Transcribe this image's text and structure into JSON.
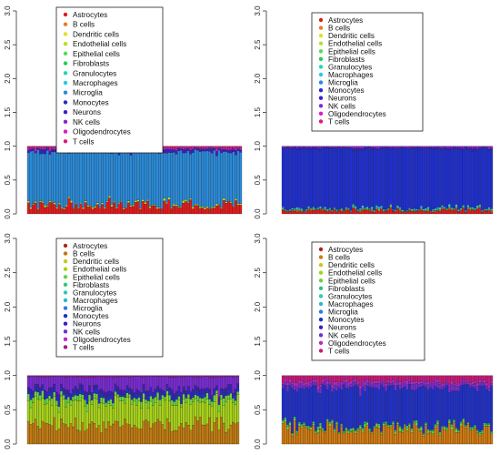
{
  "chart_data": [
    {
      "type": "bar",
      "stacked": true,
      "ylim": [
        0,
        3.0
      ],
      "yticks": [
        "0.0",
        "0.5",
        "1.0",
        "1.5",
        "2.0",
        "2.5",
        "3.0"
      ],
      "n_bars": 90,
      "legend": [
        "Astrocytes",
        "B cells",
        "Dendritic cells",
        "Endothelial cells",
        "Epithelial cells",
        "Fibroblasts",
        "Granulocytes",
        "Macrophages",
        "Microglia",
        "Monocytes",
        "Neurons",
        "NK cells",
        "Oligodendrocytes",
        "T cells"
      ],
      "legend_position": "top-center",
      "dominant_composition": {
        "Astrocytes": 0.12,
        "Endothelial cells": 0.02,
        "Microglia": 0.78,
        "Neurons": 0.04,
        "Oligodendrocytes": 0.02,
        "T cells": 0.02
      }
    },
    {
      "type": "bar",
      "stacked": true,
      "ylim": [
        0,
        3.0
      ],
      "yticks": [
        "0.0",
        "0.5",
        "1.0",
        "1.5",
        "2.0",
        "2.5",
        "3.0"
      ],
      "n_bars": 90,
      "legend": [
        "Astrocytes",
        "B cells",
        "Dendritic cells",
        "Endothelial cells",
        "Epithelial cells",
        "Fibroblasts",
        "Granulocytes",
        "Macrophages",
        "Microglia",
        "Monocytes",
        "Neurons",
        "NK cells",
        "Oligodendrocytes",
        "T cells"
      ],
      "legend_position": "top-center",
      "dominant_composition": {
        "Astrocytes": 0.04,
        "B cells": 0.01,
        "Epithelial cells": 0.01,
        "Macrophages": 0.02,
        "Monocytes": 0.88,
        "Neurons": 0.02,
        "NK cells": 0.02
      }
    },
    {
      "type": "bar",
      "stacked": true,
      "ylim": [
        0,
        3.0
      ],
      "yticks": [
        "0.0",
        "0.5",
        "1.0",
        "1.5",
        "2.0",
        "2.5",
        "3.0"
      ],
      "n_bars": 90,
      "legend": [
        "Astrocytes",
        "B cells",
        "Dendritic cells",
        "Endothelial cells",
        "Epithelial cells",
        "Fibroblasts",
        "Granulocytes",
        "Macrophages",
        "Microglia",
        "Monocytes",
        "Neurons",
        "NK cells",
        "Oligodendrocytes",
        "T cells"
      ],
      "legend_position": "top-center",
      "dominant_composition": {
        "B cells": 0.28,
        "Endothelial cells": 0.32,
        "Epithelial cells": 0.08,
        "Monocytes": 0.06,
        "Neurons": 0.06,
        "NK cells": 0.18,
        "T cells": 0.02
      }
    },
    {
      "type": "bar",
      "stacked": true,
      "ylim": [
        0,
        3.0
      ],
      "yticks": [
        "0.0",
        "0.5",
        "1.0",
        "1.5",
        "2.0",
        "2.5",
        "3.0"
      ],
      "n_bars": 90,
      "legend": [
        "Astrocytes",
        "B cells",
        "Dendritic cells",
        "Endothelial cells",
        "Epithelial cells",
        "Fibroblasts",
        "Granulocytes",
        "Macrophages",
        "Microglia",
        "Monocytes",
        "Neurons",
        "NK cells",
        "Oligodendrocytes",
        "T cells"
      ],
      "legend_position": "top-center",
      "dominant_composition": {
        "B cells": 0.22,
        "Epithelial cells": 0.03,
        "Fibroblasts": 0.02,
        "Monocytes": 0.55,
        "NK cells": 0.06,
        "Oligodendrocytes": 0.04,
        "T cells": 0.08
      }
    }
  ],
  "palettes": [
    {
      "Astrocytes": "#e4191c",
      "B cells": "#e87d1e",
      "Dendritic cells": "#e0e02a",
      "Endothelial cells": "#b8e02a",
      "Epithelial cells": "#5fd84a",
      "Fibroblasts": "#1fd14f",
      "Granulocytes": "#21d8b0",
      "Macrophages": "#27c8e0",
      "Microglia": "#2a8ad8",
      "Monocytes": "#1f2fd1",
      "Neurons": "#3a1fc8",
      "NK cells": "#8a24d1",
      "Oligodendrocytes": "#d21fc8",
      "T cells": "#e0197a"
    },
    {
      "Astrocytes": "#e4191c",
      "B cells": "#e87d1e",
      "Dendritic cells": "#e0e02a",
      "Endothelial cells": "#b8e02a",
      "Epithelial cells": "#5fd84a",
      "Fibroblasts": "#1fd14f",
      "Granulocytes": "#21d8b0",
      "Macrophages": "#27c8e0",
      "Microglia": "#2a8ad8",
      "Monocytes": "#1f2fd1",
      "Neurons": "#3a1fc8",
      "NK cells": "#8a24d1",
      "Oligodendrocytes": "#d21fc8",
      "T cells": "#e0197a"
    },
    {
      "Astrocytes": "#b3241a",
      "B cells": "#c07a12",
      "Dendritic cells": "#c8c81a",
      "Endothelial cells": "#a8d21a",
      "Epithelial cells": "#6ad23c",
      "Fibroblasts": "#2ec87a",
      "Granulocytes": "#2ec8b8",
      "Macrophages": "#2ab6d2",
      "Microglia": "#2a7fd2",
      "Monocytes": "#2030c8",
      "Neurons": "#3a1fb8",
      "NK cells": "#7a2ad2",
      "Oligodendrocytes": "#b42ac8",
      "T cells": "#9a1a8a"
    },
    {
      "Astrocytes": "#b3241a",
      "B cells": "#d07a12",
      "Dendritic cells": "#c8c81a",
      "Endothelial cells": "#a8d21a",
      "Epithelial cells": "#6ad23c",
      "Fibroblasts": "#2ec87a",
      "Granulocytes": "#2ec8b8",
      "Macrophages": "#2ab6d2",
      "Microglia": "#2a7fd2",
      "Monocytes": "#2030c8",
      "Neurons": "#3a1fb8",
      "NK cells": "#7a2ad2",
      "Oligodendrocytes": "#b42ac8",
      "T cells": "#c8197a"
    }
  ]
}
